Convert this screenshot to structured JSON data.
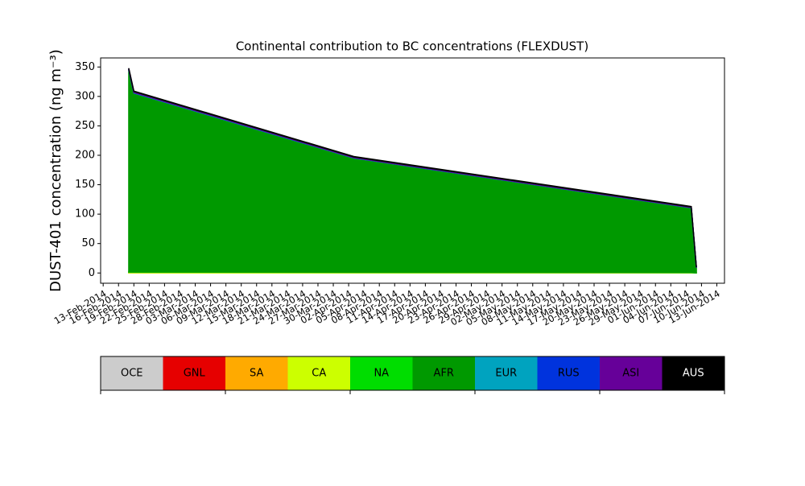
{
  "chart_data": {
    "type": "stacked_area",
    "title": "Continental contribution to BC concentrations (FLEXDUST)",
    "y_label": "DUST-401 concentration (ng m⁻³)",
    "x": [
      "2014-02-18",
      "2014-02-19",
      "2014-04-03",
      "2014-06-08",
      "2014-06-09"
    ],
    "series": [
      {
        "name": "OCE",
        "color": "#cccccc",
        "values": [
          0,
          0,
          0,
          0,
          0
        ]
      },
      {
        "name": "GNL",
        "color": "#e60000",
        "values": [
          0,
          0,
          0,
          0,
          0
        ]
      },
      {
        "name": "SA",
        "color": "#ffaa00",
        "values": [
          0.3,
          0.3,
          0.2,
          0.1,
          0
        ]
      },
      {
        "name": "CA",
        "color": "#ccff00",
        "values": [
          1,
          1,
          0.8,
          0.5,
          0.1
        ]
      },
      {
        "name": "NA",
        "color": "#00dd00",
        "values": [
          0.5,
          0.5,
          0.3,
          0.2,
          0
        ]
      },
      {
        "name": "AFR",
        "color": "#009900",
        "values": [
          343,
          304,
          194,
          110,
          9
        ]
      },
      {
        "name": "EUR",
        "color": "#00a3bf",
        "values": [
          0.5,
          0.5,
          0.3,
          0.2,
          0
        ]
      },
      {
        "name": "RUS",
        "color": "#0033dd",
        "values": [
          0.5,
          0.5,
          0.4,
          0.3,
          0.1
        ]
      },
      {
        "name": "ASI",
        "color": "#660099",
        "values": [
          1.5,
          1.5,
          1.2,
          1,
          0.5
        ]
      },
      {
        "name": "AUS",
        "color": "#000000",
        "values": [
          0.7,
          0.7,
          0.8,
          0.7,
          0.3
        ]
      }
    ],
    "xlim": [
      "2014-02-12T12:00:00Z",
      "2014-06-14T12:00:00Z"
    ],
    "xticks": [
      {
        "value": "2014-02-13",
        "label": "13-Feb-2014"
      },
      {
        "value": "2014-02-16",
        "label": "16-Feb-2014"
      },
      {
        "value": "2014-02-19",
        "label": "19-Feb-2014"
      },
      {
        "value": "2014-02-22",
        "label": "22-Feb-2014"
      },
      {
        "value": "2014-02-25",
        "label": "25-Feb-2014"
      },
      {
        "value": "2014-02-28",
        "label": "28-Feb-2014"
      },
      {
        "value": "2014-03-03",
        "label": "03-Mar-2014"
      },
      {
        "value": "2014-03-06",
        "label": "06-Mar-2014"
      },
      {
        "value": "2014-03-09",
        "label": "09-Mar-2014"
      },
      {
        "value": "2014-03-12",
        "label": "12-Mar-2014"
      },
      {
        "value": "2014-03-15",
        "label": "15-Mar-2014"
      },
      {
        "value": "2014-03-18",
        "label": "18-Mar-2014"
      },
      {
        "value": "2014-03-21",
        "label": "21-Mar-2014"
      },
      {
        "value": "2014-03-24",
        "label": "24-Mar-2014"
      },
      {
        "value": "2014-03-27",
        "label": "27-Mar-2014"
      },
      {
        "value": "2014-03-30",
        "label": "30-Mar-2014"
      },
      {
        "value": "2014-04-02",
        "label": "02-Apr-2014"
      },
      {
        "value": "2014-04-05",
        "label": "05-Apr-2014"
      },
      {
        "value": "2014-04-08",
        "label": "08-Apr-2014"
      },
      {
        "value": "2014-04-11",
        "label": "11-Apr-2014"
      },
      {
        "value": "2014-04-14",
        "label": "14-Apr-2014"
      },
      {
        "value": "2014-04-17",
        "label": "17-Apr-2014"
      },
      {
        "value": "2014-04-20",
        "label": "20-Apr-2014"
      },
      {
        "value": "2014-04-23",
        "label": "23-Apr-2014"
      },
      {
        "value": "2014-04-26",
        "label": "26-Apr-2014"
      },
      {
        "value": "2014-04-29",
        "label": "29-Apr-2014"
      },
      {
        "value": "2014-05-02",
        "label": "02-May-2014"
      },
      {
        "value": "2014-05-05",
        "label": "05-May-2014"
      },
      {
        "value": "2014-05-08",
        "label": "08-May-2014"
      },
      {
        "value": "2014-05-11",
        "label": "11-May-2014"
      },
      {
        "value": "2014-05-14",
        "label": "14-May-2014"
      },
      {
        "value": "2014-05-17",
        "label": "17-May-2014"
      },
      {
        "value": "2014-05-20",
        "label": "20-May-2014"
      },
      {
        "value": "2014-05-23",
        "label": "23-May-2014"
      },
      {
        "value": "2014-05-26",
        "label": "26-May-2014"
      },
      {
        "value": "2014-05-29",
        "label": "29-May-2014"
      },
      {
        "value": "2014-06-01",
        "label": "01-Jun-2014"
      },
      {
        "value": "2014-06-04",
        "label": "04-Jun-2014"
      },
      {
        "value": "2014-06-07",
        "label": "07-Jun-2014"
      },
      {
        "value": "2014-06-10",
        "label": "10-Jun-2014"
      },
      {
        "value": "2014-06-13",
        "label": "13-Jun-2014"
      }
    ],
    "ylim": [
      -17.4,
      365.4
    ],
    "yticks": [
      0,
      50,
      100,
      150,
      200,
      250,
      300,
      350
    ],
    "legend": "bottom"
  }
}
